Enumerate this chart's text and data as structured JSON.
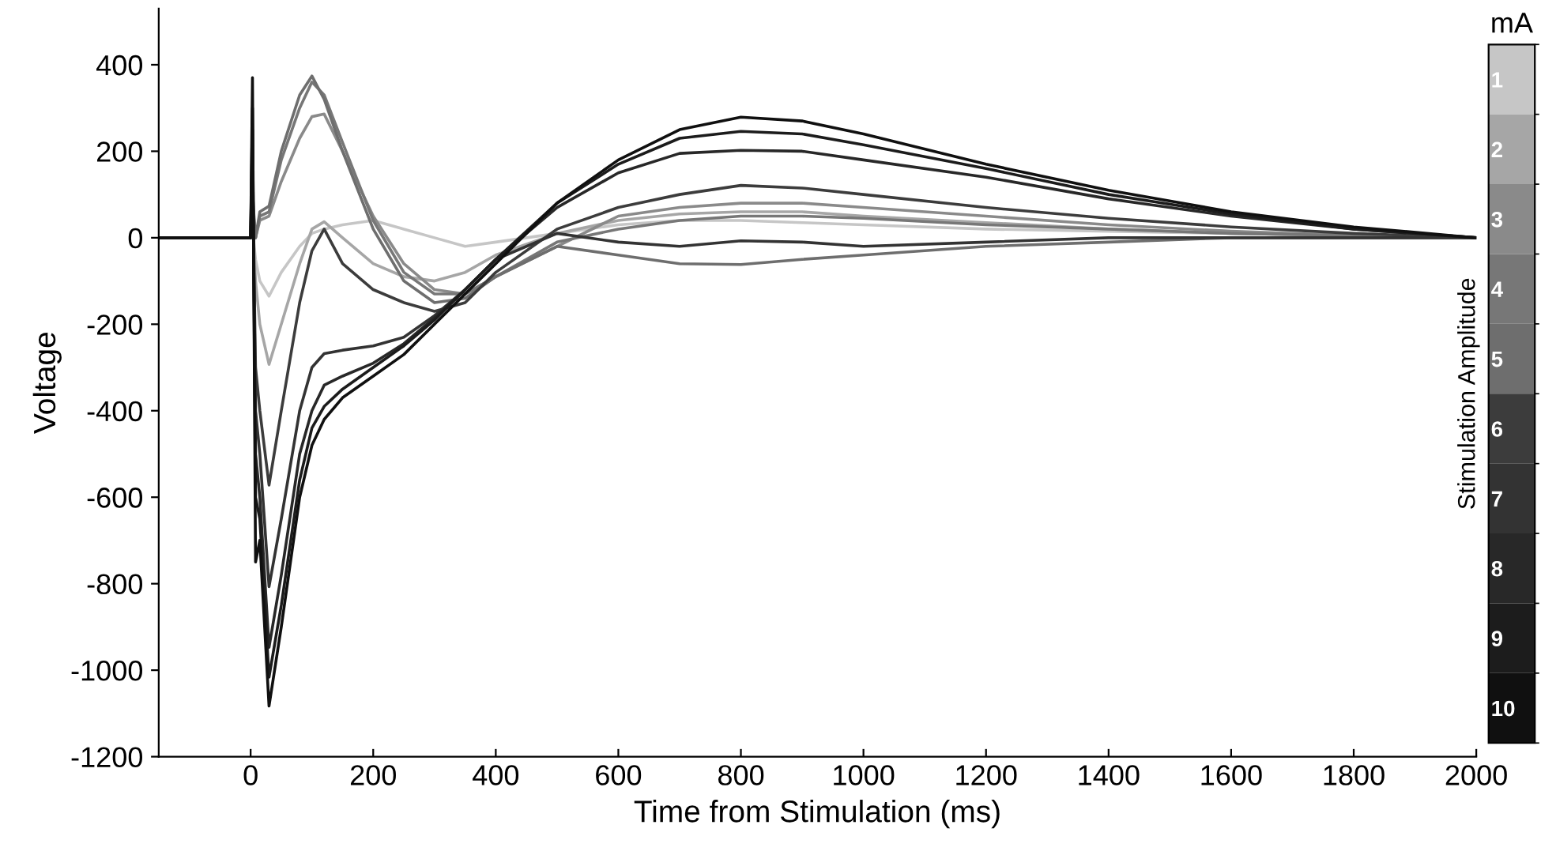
{
  "chart_data": {
    "type": "line",
    "xlabel": "Time from Stimulation (ms)",
    "ylabel": "Voltage",
    "clabel": "Stimulation Amplitude",
    "annotations": [
      "mA"
    ],
    "x": [
      -150,
      -100,
      -50,
      0,
      3,
      8,
      15,
      30,
      50,
      80,
      100,
      120,
      150,
      200,
      250,
      300,
      350,
      400,
      500,
      600,
      700,
      800,
      900,
      1000,
      1200,
      1400,
      1600,
      1800,
      2000
    ],
    "xlim": [
      -150,
      2000
    ],
    "xticks": [
      0,
      200,
      400,
      600,
      800,
      1000,
      1200,
      1400,
      1600,
      1800,
      2000
    ],
    "ylim": [
      -1200,
      530
    ],
    "yticks": [
      -1200,
      -1000,
      -800,
      -600,
      -400,
      -200,
      0,
      200,
      400
    ],
    "clim": [
      0.5,
      10.5
    ],
    "cticks": [
      1,
      2,
      3,
      4,
      5,
      6,
      7,
      8,
      9,
      10
    ],
    "grid": false,
    "legend": false,
    "marker": "none",
    "line_style": "solid",
    "series": [
      {
        "color": "#c6c6c6",
        "values": [
          0,
          0,
          0,
          0,
          20,
          -50,
          -100,
          -135,
          -80,
          -20,
          10,
          20,
          30,
          40,
          20,
          0,
          -20,
          -10,
          10,
          30,
          40,
          40,
          35,
          30,
          20,
          15,
          10,
          5,
          0
        ]
      },
      {
        "color": "#a6a6a6",
        "values": [
          0,
          0,
          0,
          0,
          40,
          -100,
          -200,
          -293,
          -200,
          -60,
          20,
          37,
          0,
          -60,
          -90,
          -100,
          -80,
          -40,
          10,
          40,
          55,
          60,
          60,
          50,
          35,
          20,
          10,
          5,
          0
        ]
      },
      {
        "color": "#8a8a8a",
        "values": [
          0,
          0,
          0,
          0,
          60,
          0,
          40,
          50,
          130,
          230,
          280,
          286,
          200,
          50,
          -60,
          -120,
          -130,
          -90,
          -20,
          50,
          70,
          80,
          80,
          70,
          50,
          30,
          15,
          5,
          0
        ]
      },
      {
        "color": "#777777",
        "values": [
          0,
          0,
          0,
          0,
          80,
          0,
          50,
          60,
          180,
          300,
          360,
          330,
          220,
          40,
          -80,
          -130,
          -130,
          -90,
          -10,
          20,
          40,
          50,
          50,
          45,
          30,
          20,
          10,
          5,
          0
        ]
      },
      {
        "color": "#6e6e6e",
        "values": [
          0,
          0,
          0,
          0,
          100,
          0,
          60,
          73,
          200,
          330,
          374,
          320,
          200,
          20,
          -100,
          -150,
          -140,
          -90,
          -20,
          -40,
          -60,
          -62,
          -50,
          -40,
          -20,
          -10,
          0,
          0,
          0
        ]
      },
      {
        "color": "#3c3c3c",
        "values": [
          0,
          0,
          0,
          0,
          150,
          -300,
          -400,
          -572,
          -400,
          -150,
          -30,
          20,
          -60,
          -120,
          -150,
          -170,
          -150,
          -80,
          20,
          70,
          100,
          121,
          115,
          100,
          70,
          45,
          25,
          10,
          0
        ]
      },
      {
        "color": "#333333",
        "values": [
          0,
          0,
          0,
          0,
          200,
          -400,
          -500,
          -807,
          -650,
          -400,
          -300,
          -268,
          -260,
          -250,
          -230,
          -180,
          -120,
          -50,
          10,
          -10,
          -20,
          -7,
          -10,
          -20,
          -10,
          0,
          0,
          0,
          0
        ]
      },
      {
        "color": "#282828",
        "values": [
          0,
          0,
          0,
          0,
          250,
          -500,
          -600,
          -947,
          -780,
          -500,
          -400,
          -341,
          -320,
          -290,
          -245,
          -185,
          -120,
          -50,
          70,
          150,
          195,
          202,
          200,
          180,
          140,
          90,
          50,
          20,
          0
        ]
      },
      {
        "color": "#1c1c1c",
        "values": [
          0,
          0,
          0,
          0,
          300,
          -600,
          -650,
          -1016,
          -850,
          -560,
          -440,
          -390,
          -350,
          -300,
          -250,
          -190,
          -120,
          -50,
          80,
          170,
          230,
          246,
          240,
          215,
          160,
          100,
          55,
          20,
          0
        ]
      },
      {
        "color": "#101010",
        "values": [
          0,
          0,
          0,
          0,
          370,
          -750,
          -700,
          -1083,
          -900,
          -600,
          -480,
          -420,
          -370,
          -320,
          -270,
          -200,
          -130,
          -60,
          80,
          180,
          250,
          279,
          270,
          240,
          170,
          110,
          60,
          25,
          0
        ]
      }
    ]
  }
}
